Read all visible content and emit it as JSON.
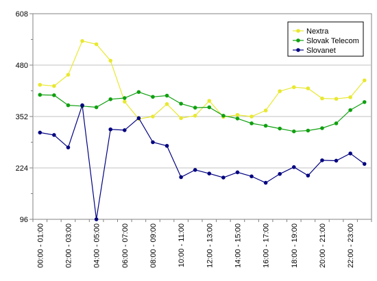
{
  "chart_data": {
    "type": "line",
    "title": "",
    "xlabel": "",
    "ylabel": "",
    "ylim": [
      96,
      608
    ],
    "yticks": [
      96,
      224,
      352,
      480,
      608
    ],
    "grid": true,
    "legend_position": "top-right",
    "categories": [
      "00:00 - 01:00",
      "01:00 - 02:00",
      "02:00 - 03:00",
      "03:00 - 04:00",
      "04:00 - 05:00",
      "05:00 - 06:00",
      "06:00 - 07:00",
      "07:00 - 08:00",
      "08:00 - 09:00",
      "09:00 - 10:00",
      "10:00 - 11:00",
      "11:00 - 12:00",
      "12:00 - 13:00",
      "13:00 - 14:00",
      "14:00 - 15:00",
      "15:00 - 16:00",
      "16:00 - 17:00",
      "17:00 - 18:00",
      "18:00 - 19:00",
      "19:00 - 20:00",
      "20:00 - 21:00",
      "21:00 - 22:00",
      "22:00 - 23:00",
      "23:00 - 00:00"
    ],
    "tick_labels": [
      "00:00 - 01:00",
      "",
      "02:00 - 03:00",
      "",
      "04:00 - 05:00",
      "",
      "06:00 - 07:00",
      "",
      "08:00 - 09:00",
      "",
      "10:00 - 11:00",
      "",
      "12:00 - 13:00",
      "",
      "14:00 - 15:00",
      "",
      "16:00 - 17:00",
      "",
      "18:00 - 19:00",
      "",
      "20:00 - 21:00",
      "",
      "22:00 - 23:00",
      ""
    ],
    "series": [
      {
        "name": "Nextra",
        "color": "#e8e830",
        "values": [
          431,
          428,
          456,
          540,
          532,
          491,
          389,
          346,
          352,
          383,
          348,
          354,
          391,
          351,
          356,
          352,
          367,
          415,
          425,
          422,
          397,
          396,
          400,
          442
        ]
      },
      {
        "name": "Slovak Telecom",
        "color": "#10a010",
        "values": [
          406,
          405,
          380,
          378,
          375,
          395,
          398,
          413,
          401,
          404,
          384,
          374,
          375,
          354,
          347,
          335,
          329,
          322,
          315,
          317,
          323,
          335,
          368,
          388
        ]
      },
      {
        "name": "Slovanet",
        "color": "#000080",
        "values": [
          312,
          306,
          275,
          380,
          96,
          320,
          318,
          348,
          288,
          279,
          201,
          219,
          210,
          200,
          213,
          203,
          187,
          209,
          226,
          205,
          243,
          242,
          260,
          234
        ]
      }
    ]
  }
}
